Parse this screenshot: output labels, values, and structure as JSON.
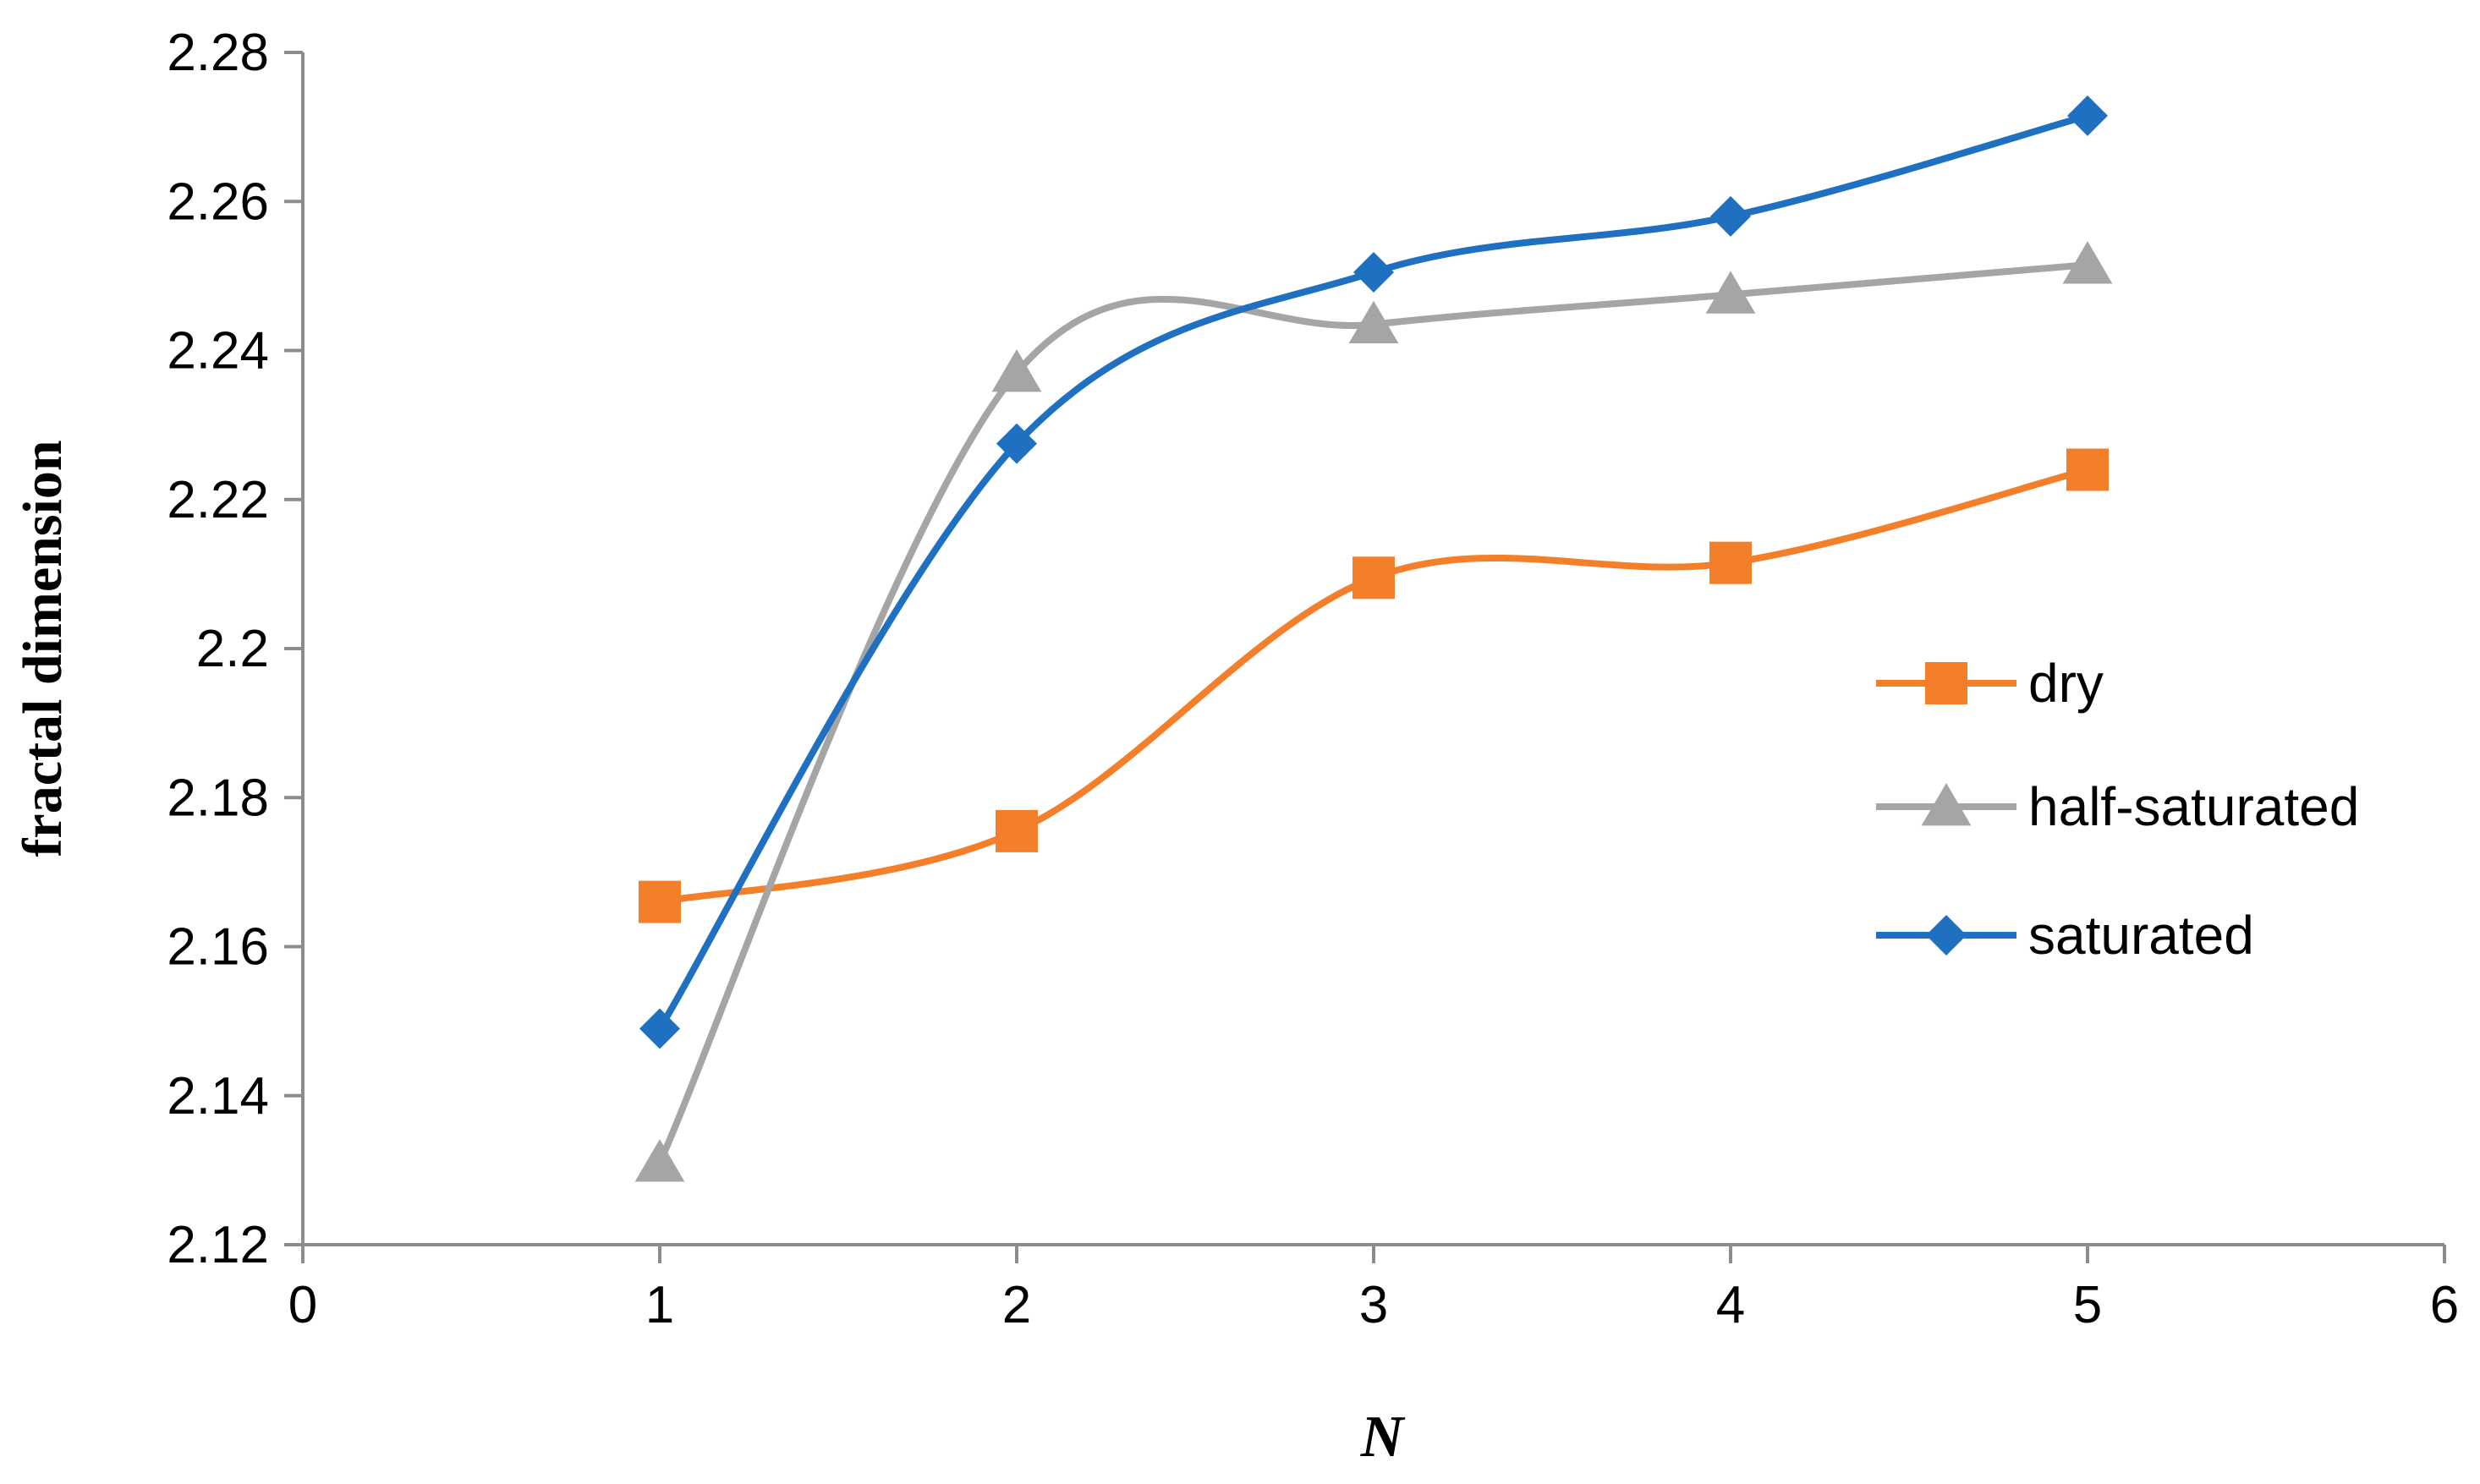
{
  "chart_data": {
    "type": "line",
    "smooth": true,
    "title": "",
    "xlabel": "N",
    "ylabel": "fractal dimension",
    "xlim": [
      0,
      6
    ],
    "ylim": [
      2.12,
      2.28
    ],
    "xticks": [
      "0",
      "1",
      "2",
      "3",
      "4",
      "5",
      "6"
    ],
    "yticks": [
      "2.12",
      "2.14",
      "2.16",
      "2.18",
      "2.2",
      "2.22",
      "2.24",
      "2.26",
      "2.28"
    ],
    "grid": false,
    "legend_position": "right",
    "x": [
      1,
      2,
      3,
      4,
      5
    ],
    "series": [
      {
        "name": "dry",
        "color": "#F47F2B",
        "marker": "square",
        "values": [
          2.166,
          2.1755,
          2.2095,
          2.2115,
          2.224
        ]
      },
      {
        "name": "half-saturated",
        "color": "#A5A5A5",
        "marker": "triangle",
        "values": [
          2.131,
          2.237,
          2.2435,
          2.2475,
          2.2515
        ]
      },
      {
        "name": "saturated",
        "color": "#1F70C1",
        "marker": "diamond",
        "values": [
          2.149,
          2.2275,
          2.2505,
          2.258,
          2.2715
        ]
      }
    ]
  }
}
